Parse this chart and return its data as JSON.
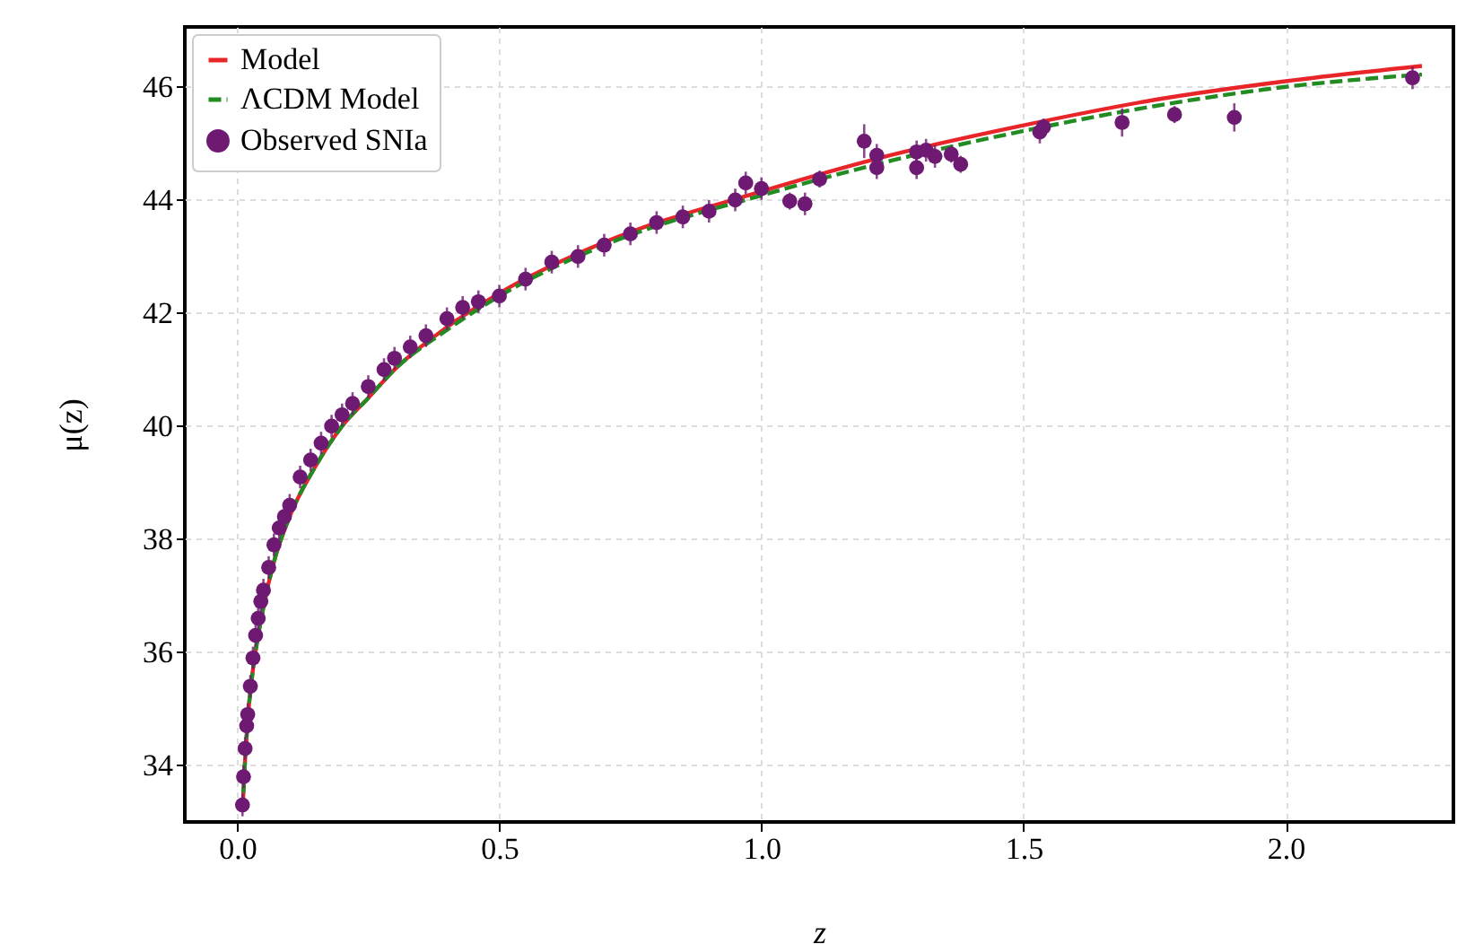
{
  "chart_data": {
    "type": "scatter",
    "xlabel": "z",
    "ylabel": "μ(z)",
    "xlim": [
      -0.1,
      2.32
    ],
    "ylim": [
      33.0,
      47.06
    ],
    "xticks": [
      {
        "value": 0,
        "label": "0.0"
      },
      0.5,
      {
        "value": 1,
        "label": "1.0"
      },
      1.5,
      {
        "value": 2,
        "label": "2.0"
      }
    ],
    "yticks": [
      34,
      36,
      38,
      40,
      42,
      44,
      46
    ],
    "grid": true,
    "legend": "top left",
    "series": [
      {
        "name": "Model",
        "type": "line",
        "color": "#e8262a",
        "line_style": "solid",
        "x": [
          0.01,
          0.015,
          0.02,
          0.03,
          0.04,
          0.05,
          0.07,
          0.1,
          0.15,
          0.2,
          0.25,
          0.3,
          0.4,
          0.5,
          0.7,
          1.0,
          1.25,
          1.5,
          1.75,
          2.0,
          2.26
        ],
        "values": [
          33.2,
          34.1,
          34.8,
          35.7,
          36.3,
          36.8,
          37.6,
          38.4,
          39.3,
          40.0,
          40.5,
          41.0,
          41.75,
          42.35,
          43.25,
          44.15,
          44.8,
          45.32,
          45.77,
          46.1,
          46.37
        ]
      },
      {
        "name": "ΛCDM Model",
        "type": "line",
        "color": "#228b22",
        "line_style": "dashed",
        "x": [
          0.01,
          0.015,
          0.02,
          0.03,
          0.04,
          0.05,
          0.07,
          0.1,
          0.15,
          0.2,
          0.25,
          0.3,
          0.4,
          0.5,
          0.7,
          1.0,
          1.25,
          1.5,
          1.75,
          2.0,
          2.26
        ],
        "values": [
          33.2,
          34.1,
          34.8,
          35.7,
          36.3,
          36.8,
          37.6,
          38.4,
          39.3,
          40.0,
          40.5,
          41.0,
          41.7,
          42.3,
          43.2,
          44.08,
          44.7,
          45.22,
          45.66,
          46.0,
          46.22
        ]
      },
      {
        "name": "Observed SNIa",
        "color": "#6e1a72",
        "marker": "circle",
        "x": [
          0.01,
          0.012,
          0.015,
          0.018,
          0.02,
          0.025,
          0.03,
          0.035,
          0.04,
          0.045,
          0.05,
          0.06,
          0.07,
          0.08,
          0.09,
          0.1,
          0.12,
          0.14,
          0.16,
          0.18,
          0.2,
          0.22,
          0.25,
          0.28,
          0.3,
          0.33,
          0.36,
          0.4,
          0.43,
          0.46,
          0.5,
          0.55,
          0.6,
          0.65,
          0.7,
          0.75,
          0.8,
          0.85,
          0.9,
          0.95,
          0.97,
          1.0,
          1.054,
          1.083,
          1.111,
          1.196,
          1.22,
          1.22,
          1.296,
          1.296,
          1.314,
          1.331,
          1.362,
          1.38,
          1.531,
          1.538,
          1.688,
          1.788,
          1.902,
          2.242
        ],
        "values": [
          33.3,
          33.8,
          34.3,
          34.7,
          34.9,
          35.4,
          35.9,
          36.3,
          36.6,
          36.9,
          37.1,
          37.5,
          37.9,
          38.2,
          38.4,
          38.6,
          39.1,
          39.4,
          39.7,
          40.0,
          40.2,
          40.4,
          40.7,
          41.0,
          41.2,
          41.4,
          41.6,
          41.9,
          42.1,
          42.2,
          42.3,
          42.6,
          42.9,
          43.0,
          43.2,
          43.4,
          43.6,
          43.7,
          43.8,
          44.0,
          44.3,
          44.2,
          43.98,
          43.93,
          44.37,
          45.04,
          44.79,
          44.57,
          44.57,
          44.85,
          44.88,
          44.77,
          44.81,
          44.63,
          45.2,
          45.29,
          45.37,
          45.51,
          45.46,
          46.16
        ],
        "errors": [
          0.2,
          0.2,
          0.2,
          0.2,
          0.2,
          0.2,
          0.2,
          0.2,
          0.2,
          0.2,
          0.2,
          0.2,
          0.2,
          0.2,
          0.2,
          0.2,
          0.2,
          0.2,
          0.2,
          0.2,
          0.2,
          0.2,
          0.2,
          0.2,
          0.2,
          0.2,
          0.2,
          0.2,
          0.2,
          0.2,
          0.2,
          0.2,
          0.2,
          0.2,
          0.2,
          0.2,
          0.2,
          0.2,
          0.2,
          0.2,
          0.2,
          0.2,
          0.15,
          0.2,
          0.15,
          0.3,
          0.2,
          0.2,
          0.2,
          0.2,
          0.2,
          0.2,
          0.15,
          0.15,
          0.2,
          0.15,
          0.25,
          0.15,
          0.25,
          0.2
        ]
      }
    ]
  }
}
